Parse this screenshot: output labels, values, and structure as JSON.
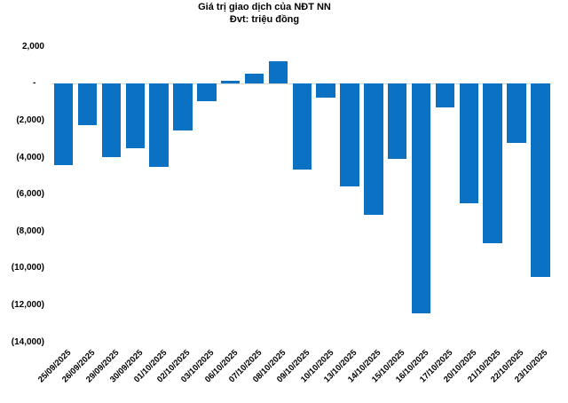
{
  "chart_data": {
    "type": "bar",
    "title": "Giá trị giao dịch của NĐT NN",
    "subtitle": "Đvt: triệu đồng",
    "categories": [
      "25/09/2025",
      "26/09/2025",
      "29/09/2025",
      "30/09/2025",
      "01/10/2025",
      "02/10/2025",
      "03/10/2025",
      "06/10/2025",
      "07/10/2025",
      "08/10/2025",
      "09/10/2025",
      "10/10/2025",
      "13/10/2025",
      "14/10/2025",
      "15/10/2025",
      "16/10/2025",
      "17/10/2025",
      "20/10/2025",
      "21/10/2025",
      "22/10/2025",
      "23/10/2025"
    ],
    "values": [
      -4400,
      -2260,
      -4000,
      -3510,
      -4500,
      -2520,
      -950,
      180,
      550,
      1200,
      -4650,
      -770,
      -5550,
      -7100,
      -4080,
      -12430,
      -1300,
      -6480,
      -8620,
      -3220,
      -10480
    ],
    "xlabel": "",
    "ylabel": "",
    "ylim": [
      -14000,
      2000
    ],
    "ytick_step": 2000,
    "ytick_max": 2000,
    "ytick_labels": [
      "2,000",
      "-",
      "(2,000)",
      "(4,000)",
      "(6,000)",
      "(8,000)",
      "(10,000)",
      "(12,000)",
      "(14,000)"
    ],
    "negative_number_format": "parentheses",
    "grid": false,
    "legend": "none",
    "bar_color": "#0b72c3",
    "axis_line_color": "#d9d9d9",
    "text_color": "#000000",
    "background": "#ffffff"
  }
}
